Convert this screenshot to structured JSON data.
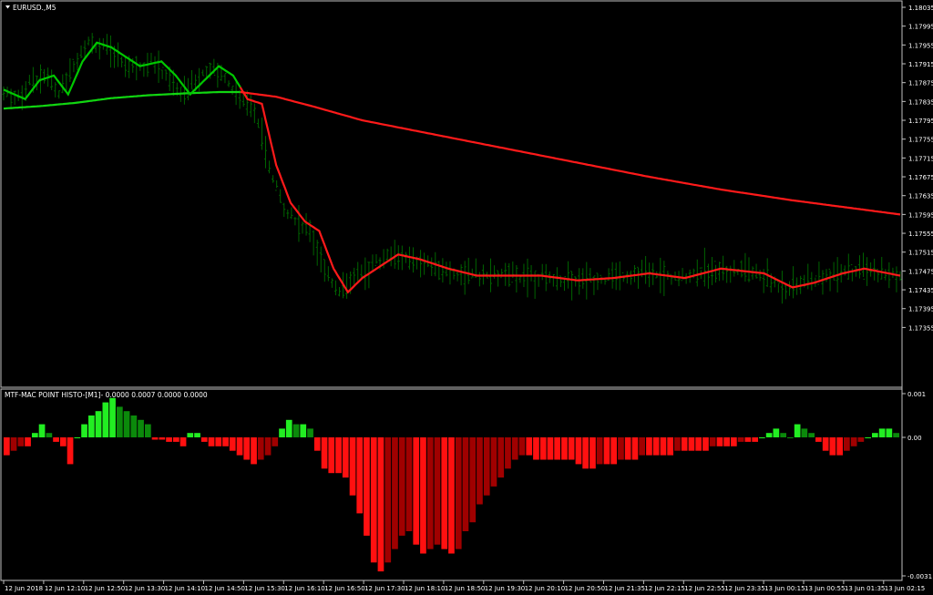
{
  "window": {
    "symbol_title": "EURUSD.,M5",
    "menu_arrow_icon": "triangle-down-icon"
  },
  "indicator": {
    "title": "MTF-MAC POINT HISTO-[M1]- 0.0000 0.0007 0.0000 0.0000",
    "scale_top": "0.001",
    "scale_zero": "0.00",
    "scale_bottom": "-0.0031"
  },
  "price_axis_labels": [
    "1.18035",
    "1.17995",
    "1.17955",
    "1.17915",
    "1.17875",
    "1.17835",
    "1.17795",
    "1.17755",
    "1.17715",
    "1.17675",
    "1.17635",
    "1.17595",
    "1.17555",
    "1.17515",
    "1.17475",
    "1.17435",
    "1.17395",
    "1.17355"
  ],
  "time_axis_labels": [
    "12 Jun 2018",
    "12 Jun 12:10",
    "12 Jun 12:50",
    "12 Jun 13:30",
    "12 Jun 14:10",
    "12 Jun 14:50",
    "12 Jun 15:30",
    "12 Jun 16:10",
    "12 Jun 16:50",
    "12 Jun 17:30",
    "12 Jun 18:10",
    "12 Jun 18:50",
    "12 Jun 19:30",
    "12 Jun 20:10",
    "12 Jun 20:50",
    "12 Jun 21:35",
    "12 Jun 22:15",
    "12 Jun 22:55",
    "12 Jun 23:35",
    "13 Jun 00:15",
    "13 Jun 00:55",
    "13 Jun 01:35",
    "13 Jun 02:15"
  ],
  "colors": {
    "background": "#000000",
    "frame": "#c0c0c0",
    "candle_up": "#006400",
    "fast_ma_up": "#00c800",
    "fast_ma_down": "#ff1a1a",
    "slow_ma_up": "#11d611",
    "slow_ma_down": "#ff1a1a",
    "histo_up_strong": "#22ee22",
    "histo_up_weak": "#0b8a0b",
    "histo_down_strong": "#ff1010",
    "histo_down_weak": "#a00000"
  },
  "chart_data": [
    {
      "type": "line",
      "title": "EURUSD.,M5",
      "ylim": [
        1.1734,
        1.1806
      ],
      "series": [
        {
          "points": [
            [
              0,
              1.1782
            ],
            [
              5,
              1.17825
            ],
            [
              10,
              1.17832
            ],
            [
              15,
              1.17842
            ],
            [
              20,
              1.17848
            ],
            [
              25,
              1.17852
            ],
            [
              30,
              1.17855
            ],
            [
              33,
              1.17855
            ],
            [
              38,
              1.17845
            ],
            [
              43,
              1.17825
            ],
            [
              50,
              1.17795
            ],
            [
              60,
              1.17765
            ],
            [
              70,
              1.17735
            ],
            [
              80,
              1.17705
            ],
            [
              90,
              1.17675
            ],
            [
              100,
              1.17648
            ],
            [
              110,
              1.17625
            ],
            [
              120,
              1.17605
            ],
            [
              125,
              1.17595
            ]
          ]
        },
        {
          "points": [
            [
              0,
              1.1786
            ],
            [
              3,
              1.1784
            ],
            [
              5,
              1.1788
            ],
            [
              7,
              1.1789
            ],
            [
              9,
              1.1785
            ],
            [
              11,
              1.1792
            ],
            [
              13,
              1.1796
            ],
            [
              15,
              1.1795
            ],
            [
              17,
              1.1793
            ],
            [
              19,
              1.1791
            ],
            [
              22,
              1.1792
            ],
            [
              24,
              1.1789
            ],
            [
              26,
              1.1785
            ],
            [
              28,
              1.1788
            ],
            [
              30,
              1.1791
            ],
            [
              32,
              1.1789
            ],
            [
              34,
              1.1784
            ],
            [
              36,
              1.1783
            ],
            [
              38,
              1.177
            ],
            [
              40,
              1.1762
            ],
            [
              42,
              1.1758
            ],
            [
              44,
              1.1756
            ],
            [
              46,
              1.1748
            ],
            [
              48,
              1.1743
            ],
            [
              50,
              1.1746
            ],
            [
              52,
              1.1748
            ],
            [
              55,
              1.1751
            ],
            [
              58,
              1.175
            ],
            [
              62,
              1.1748
            ],
            [
              66,
              1.17465
            ],
            [
              70,
              1.17465
            ],
            [
              75,
              1.17465
            ],
            [
              80,
              1.17455
            ],
            [
              85,
              1.1746
            ],
            [
              90,
              1.1747
            ],
            [
              95,
              1.1746
            ],
            [
              100,
              1.1748
            ],
            [
              106,
              1.1747
            ],
            [
              110,
              1.1744
            ],
            [
              113,
              1.1745
            ],
            [
              117,
              1.1747
            ],
            [
              120,
              1.1748
            ],
            [
              125,
              1.17465
            ]
          ]
        }
      ]
    },
    {
      "type": "bar",
      "title": "MTF-MAC POINT HISTO-[M1]- 0.0000 0.0007 0.0000 0.0000",
      "ylim": [
        -0.0031,
        0.001
      ],
      "values": [
        -0.0004,
        -0.0003,
        -0.0002,
        -0.0002,
        0.0001,
        0.0003,
        0.0001,
        -0.0001,
        -0.0002,
        -0.0006,
        0.0,
        0.0003,
        0.0005,
        0.0006,
        0.0008,
        0.0009,
        0.0007,
        0.0006,
        0.0005,
        0.0004,
        0.0003,
        -5e-05,
        -5e-05,
        -0.0001,
        -0.0001,
        -0.0002,
        0.0001,
        0.0001,
        -0.0001,
        -0.0002,
        -0.0002,
        -0.0002,
        -0.0003,
        -0.0004,
        -0.0005,
        -0.0006,
        -0.0005,
        -0.0004,
        -0.0002,
        0.0002,
        0.0004,
        0.0003,
        0.0003,
        0.0002,
        -0.0003,
        -0.0007,
        -0.0008,
        -0.0008,
        -0.0009,
        -0.0013,
        -0.0017,
        -0.0022,
        -0.0028,
        -0.003,
        -0.0028,
        -0.0025,
        -0.0022,
        -0.0021,
        -0.0024,
        -0.0026,
        -0.0025,
        -0.0024,
        -0.0025,
        -0.0026,
        -0.0025,
        -0.0021,
        -0.0019,
        -0.0015,
        -0.0013,
        -0.0011,
        -0.0009,
        -0.0007,
        -0.0005,
        -0.0004,
        -0.0004,
        -0.0005,
        -0.0005,
        -0.0005,
        -0.0005,
        -0.0005,
        -0.0005,
        -0.0006,
        -0.0007,
        -0.0007,
        -0.0006,
        -0.0006,
        -0.0006,
        -0.0005,
        -0.0005,
        -0.0005,
        -0.0004,
        -0.0004,
        -0.0004,
        -0.0004,
        -0.0004,
        -0.0003,
        -0.0003,
        -0.0003,
        -0.0003,
        -0.0003,
        -0.0002,
        -0.0002,
        -0.0002,
        -0.0002,
        -0.0001,
        -0.0001,
        -0.0001,
        0.0,
        0.0001,
        0.0002,
        0.0001,
        0.0,
        0.0003,
        0.0002,
        0.0001,
        -0.0001,
        -0.0003,
        -0.0004,
        -0.0004,
        -0.0003,
        -0.0002,
        -0.0001,
        0.0,
        0.0001,
        0.0002,
        0.0002,
        0.0001
      ]
    }
  ]
}
